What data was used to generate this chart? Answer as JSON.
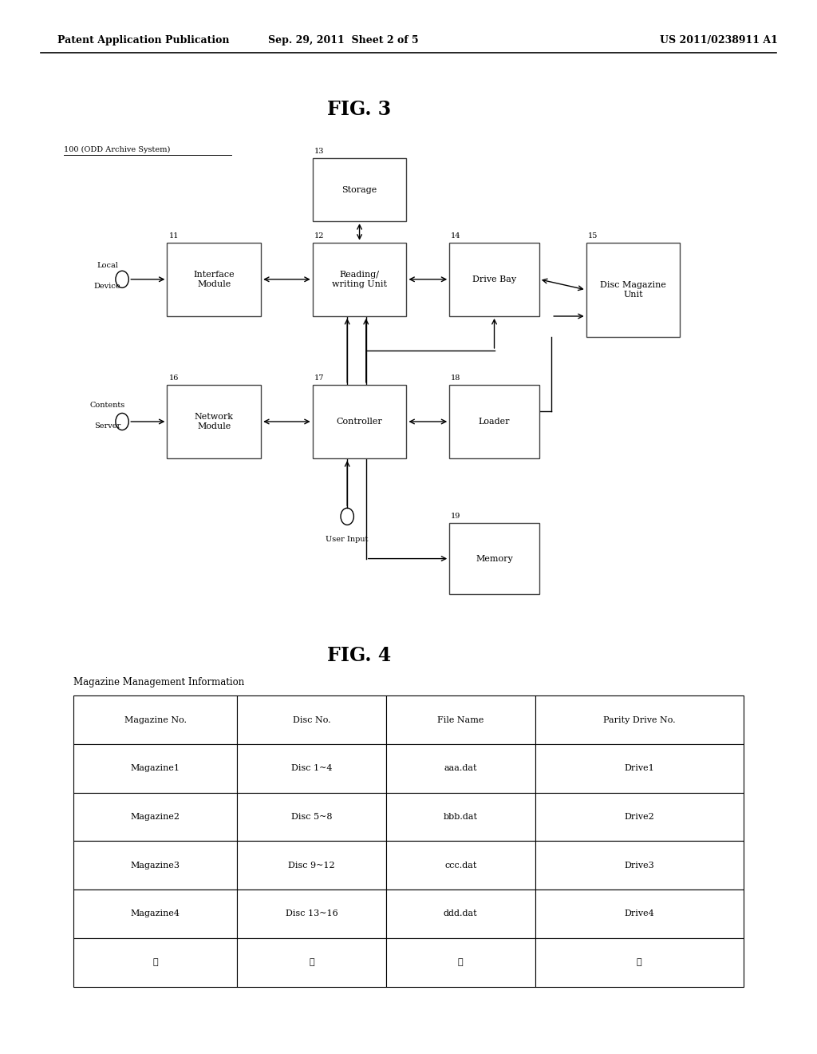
{
  "header_left": "Patent Application Publication",
  "header_mid": "Sep. 29, 2011  Sheet 2 of 5",
  "header_right": "US 2011/0238911 A1",
  "fig3_title": "FIG. 3",
  "fig4_title": "FIG. 4",
  "system_label": "100 (ODD Archive System)",
  "table_title": "Magazine Management Information",
  "table_headers": [
    "Magazine No.",
    "Disc No.",
    "File Name",
    "Parity Drive No."
  ],
  "table_data": [
    [
      "Magazine1",
      "Disc 1~4",
      "aaa.dat",
      "Drive1"
    ],
    [
      "Magazine2",
      "Disc 5~8",
      "bbb.dat",
      "Drive2"
    ],
    [
      "Magazine3",
      "Disc 9~12",
      "ccc.dat",
      "Drive3"
    ],
    [
      "Magazine4",
      "Disc 13~16",
      "ddd.dat",
      "Drive4"
    ],
    [
      "⋮",
      "⋮",
      "⋮",
      "⋮"
    ]
  ],
  "bg_color": "#ffffff",
  "text_color": "#000000",
  "box_edge_color": "#444444",
  "boxes_coords": {
    "storage": [
      0.44,
      0.82,
      0.115,
      0.06,
      "Storage",
      "13"
    ],
    "interface": [
      0.262,
      0.735,
      0.115,
      0.07,
      "Interface\nModule",
      "11"
    ],
    "reading": [
      0.44,
      0.735,
      0.115,
      0.07,
      "Reading/\nwriting Unit",
      "12"
    ],
    "drive_bay": [
      0.605,
      0.735,
      0.11,
      0.07,
      "Drive Bay",
      "14"
    ],
    "disc_mag": [
      0.775,
      0.725,
      0.115,
      0.09,
      "Disc Magazine\nUnit",
      "15"
    ],
    "network": [
      0.262,
      0.6,
      0.115,
      0.07,
      "Network\nModule",
      "16"
    ],
    "controller": [
      0.44,
      0.6,
      0.115,
      0.07,
      "Controller",
      "17"
    ],
    "loader": [
      0.605,
      0.6,
      0.11,
      0.07,
      "Loader",
      "18"
    ],
    "memory": [
      0.605,
      0.47,
      0.11,
      0.068,
      "Memory",
      "19"
    ]
  }
}
